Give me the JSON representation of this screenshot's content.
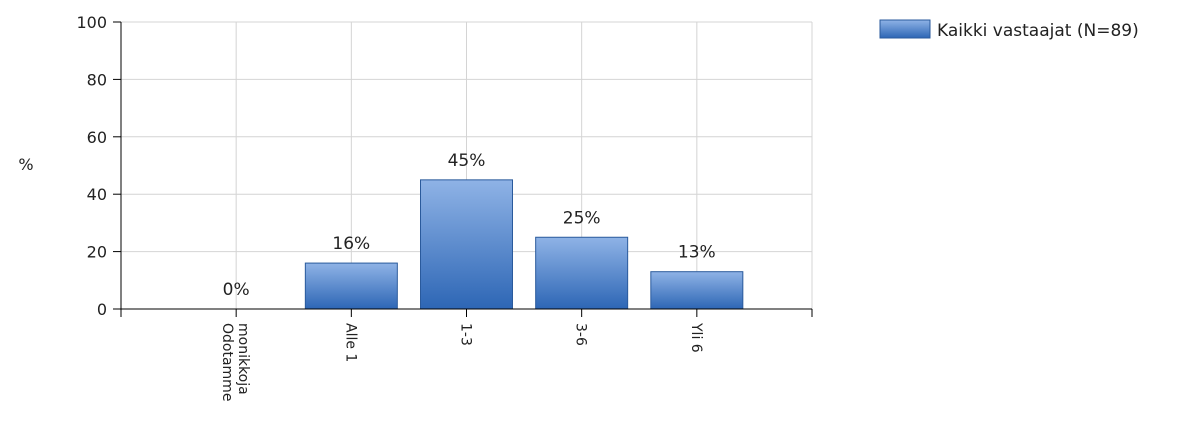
{
  "chart_data": {
    "type": "bar",
    "categories": [
      [
        "Odotamme",
        "monikkoja"
      ],
      [
        "Alle 1"
      ],
      [
        "1-3"
      ],
      [
        "3-6"
      ],
      [
        "Yli 6"
      ]
    ],
    "series": [
      {
        "name": "Kaikki vastaajat (N=89)",
        "values": [
          0,
          16,
          45,
          25,
          13
        ],
        "labels": [
          "0%",
          "16%",
          "45%",
          "25%",
          "13%"
        ]
      }
    ],
    "ylabel": "%",
    "ylim": [
      0,
      100
    ],
    "yticks": [
      0,
      20,
      40,
      60,
      80,
      100
    ],
    "grid": true,
    "legend_position": "top-right",
    "colors": {
      "bar_top": "#8fb3e6",
      "bar_bottom": "#2d66b5",
      "bar_stroke": "#2a5a9c",
      "grid": "#d4d4d4",
      "axis": "#000000"
    }
  }
}
